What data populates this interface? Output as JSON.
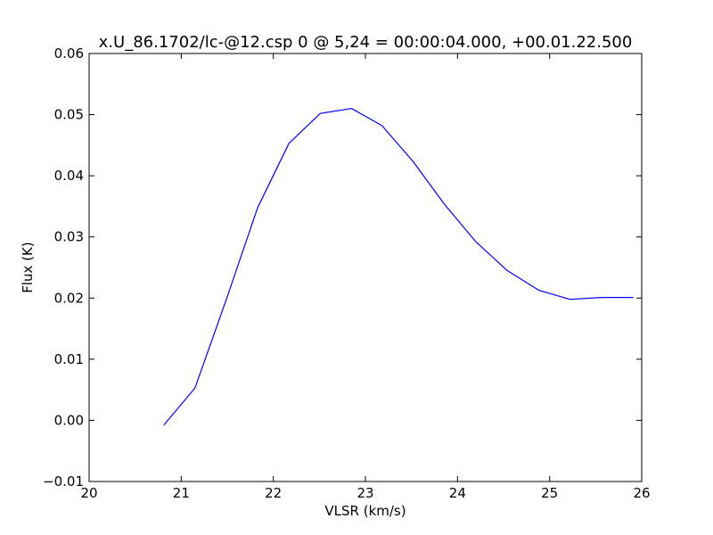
{
  "chart_data": {
    "type": "line",
    "title": "x.U_86.1702/lc-@12.csp 0 @ 5,24 = 00:00:04.000, +00.01.22.500",
    "xlabel": "VLSR (km/s)",
    "ylabel": "Flux (K)",
    "xlim": [
      20,
      26
    ],
    "ylim": [
      -0.01,
      0.06
    ],
    "x_ticks": [
      20,
      21,
      22,
      23,
      24,
      25,
      26
    ],
    "x_tick_labels": [
      "20",
      "21",
      "22",
      "23",
      "24",
      "25",
      "26"
    ],
    "y_ticks": [
      -0.01,
      0.0,
      0.01,
      0.02,
      0.03,
      0.04,
      0.05,
      0.06
    ],
    "y_tick_labels": [
      "−0.01",
      "0.00",
      "0.01",
      "0.02",
      "0.03",
      "0.04",
      "0.05",
      "0.06"
    ],
    "grid": false,
    "series": [
      {
        "color": "#0000ff",
        "x": [
          20.81,
          21.15,
          21.49,
          21.83,
          22.17,
          22.51,
          22.85,
          23.18,
          23.52,
          23.86,
          24.2,
          24.54,
          24.88,
          25.22,
          25.57,
          25.91
        ],
        "y": [
          -0.0008,
          0.0053,
          0.0198,
          0.0348,
          0.0453,
          0.0502,
          0.051,
          0.0482,
          0.0423,
          0.0353,
          0.0292,
          0.0245,
          0.0213,
          0.0198,
          0.0201,
          0.0201
        ]
      }
    ]
  }
}
